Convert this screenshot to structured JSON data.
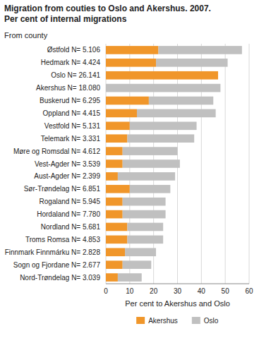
{
  "chart_data": {
    "type": "bar",
    "orientation": "horizontal",
    "stacked": true,
    "title": "Migration from couties to Oslo and Akershus. 2007.\nPer cent of internal migrations",
    "xlabel": "Per cent to Akershus and Oslo",
    "ylabel": "From county",
    "categories": [
      "Østfold N= 5.106",
      "Hedmark N= 4.424",
      "Oslo N= 26.141",
      "Akershus N= 18.080",
      "Buskerud N= 6.295",
      "Oppland N= 4.415",
      "Vestfold N= 5.131",
      "Telemark N= 3.331",
      "Møre og Romsdal N= 4.612",
      "Vest-Agder N= 3.539",
      "Aust-Agder N= 2.399",
      "Sør-Trøndelag N= 6.851",
      "Rogaland N= 5.945",
      "Hordaland N= 7.780",
      "Nordland N= 5.681",
      "Troms Romsa N= 4.853",
      "Finnmark Finnmárku N= 2.828",
      "Sogn og Fjordane N= 2.677",
      "Nord-Trøndelag N= 3.039"
    ],
    "series": [
      {
        "name": "Akershus",
        "color": "#f0962a",
        "values": [
          22,
          21,
          47,
          0,
          18,
          13,
          10,
          9,
          7,
          7,
          5,
          10,
          7,
          7,
          9,
          9,
          8,
          7,
          5
        ]
      },
      {
        "name": "Oslo",
        "color": "#c0c0c0",
        "values": [
          35,
          30,
          0,
          48,
          27,
          33,
          28,
          28,
          23,
          24,
          24,
          17,
          18,
          18,
          15,
          15,
          13,
          12,
          10
        ]
      }
    ],
    "xlim": [
      0,
      60
    ],
    "xticks": [
      0,
      10,
      20,
      30,
      40,
      50,
      60
    ],
    "grid": true,
    "legend": "bottom"
  }
}
